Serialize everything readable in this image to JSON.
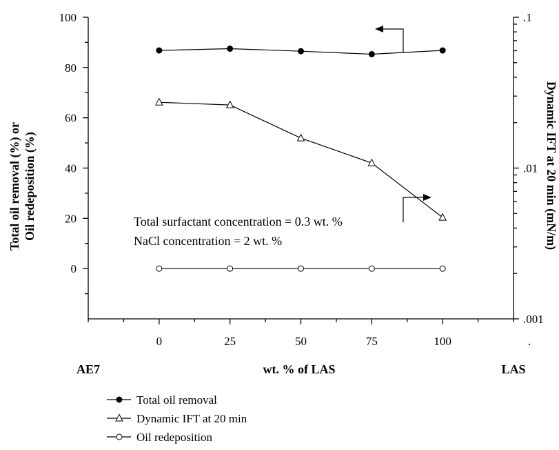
{
  "chart_data": {
    "type": "line",
    "x": [
      0,
      25,
      50,
      75,
      100
    ],
    "xlim": [
      -25,
      125
    ],
    "xticks": [
      "0",
      "25",
      "50",
      "75",
      "100"
    ],
    "xlabel": "wt. % of LAS",
    "x_end_labels": {
      "left": "AE7",
      "right": "LAS"
    },
    "left_axis": {
      "label_line1": "Total oil removal (%) or",
      "label_line2": "Oil redeposition (%)",
      "ylim": [
        -20,
        100
      ],
      "ticks": [
        "0",
        "20",
        "40",
        "60",
        "80",
        "100"
      ]
    },
    "right_axis": {
      "label": "Dynamic IFT at 20 min (mN/m)",
      "scale": "log",
      "ylim": [
        0.001,
        0.1
      ],
      "ticks": [
        ".001",
        ".01",
        ".1"
      ],
      "stray_label": "."
    },
    "series": [
      {
        "name": "Total oil removal",
        "axis": "left",
        "marker": "filled-circle",
        "values": [
          86.8,
          87.5,
          86.5,
          85.3,
          86.8
        ]
      },
      {
        "name": "Dynamic IFT at 20 min",
        "axis": "right",
        "marker": "open-triangle",
        "values": [
          0.0273,
          0.0262,
          0.0158,
          0.0108,
          0.0047
        ]
      },
      {
        "name": "Oil redeposition",
        "axis": "left",
        "marker": "open-circle",
        "values": [
          0,
          0,
          0,
          0,
          0
        ]
      }
    ],
    "annotations": [
      "Total surfactant concentration = 0.3 wt. %",
      "NaCl concentration = 2 wt. %"
    ],
    "legend_position": "bottom-left",
    "grid": false
  }
}
